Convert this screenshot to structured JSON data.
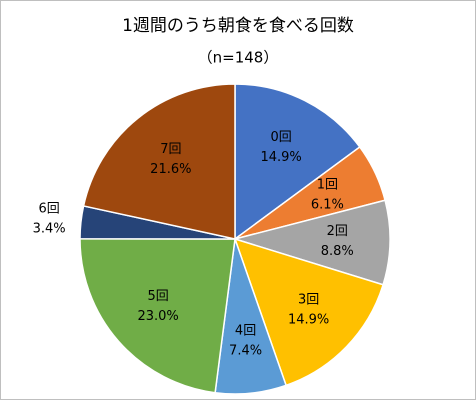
{
  "chart_data": {
    "type": "pie",
    "title": "1週間のうち朝食を食べる回数",
    "subtitle": "（n=148）",
    "categories": [
      "0回",
      "1回",
      "2回",
      "3回",
      "4回",
      "5回",
      "6回",
      "7回"
    ],
    "values": [
      14.9,
      6.1,
      8.8,
      14.9,
      7.4,
      23.0,
      3.4,
      21.6
    ],
    "value_labels": [
      "14.9%",
      "6.1%",
      "8.8%",
      "14.9%",
      "7.4%",
      "23.0%",
      "3.4%",
      "21.6%"
    ],
    "colors": [
      "#4472c4",
      "#ed7d31",
      "#a5a5a5",
      "#ffc000",
      "#5b9bd5",
      "#70ad47",
      "#264478",
      "#9e480e"
    ]
  }
}
